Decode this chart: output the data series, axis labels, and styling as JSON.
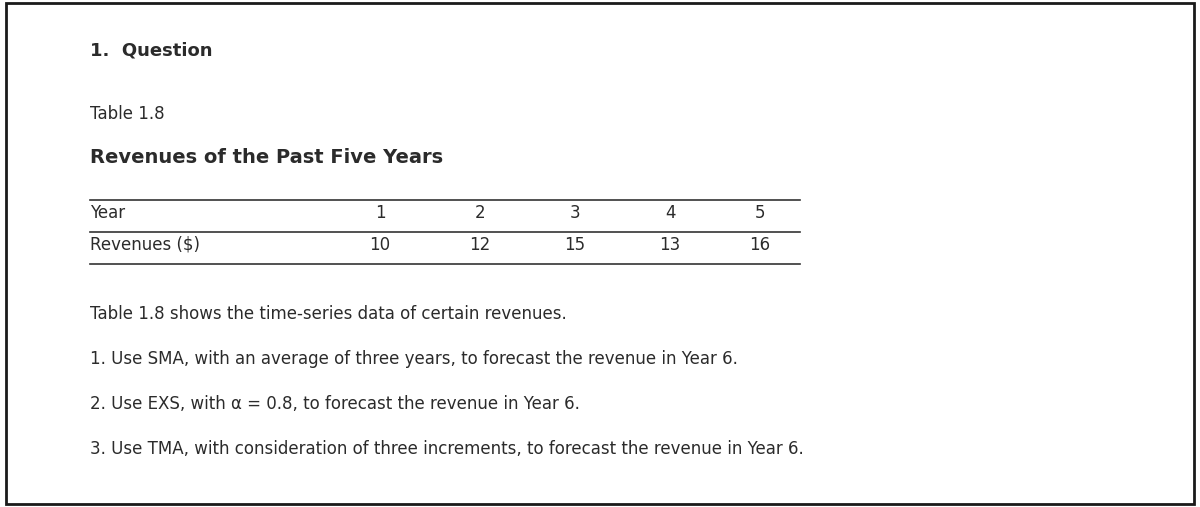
{
  "background_color": "#ffffff",
  "border_color": "#2b2b2b",
  "heading_number": "1.",
  "table_label": "Table 1.8",
  "table_title": "Revenues of the Past Five Years",
  "col_header": "Year",
  "row_header": "Revenues ($)",
  "years": [
    "1",
    "2",
    "3",
    "4",
    "5"
  ],
  "revenues": [
    "10",
    "12",
    "15",
    "13",
    "16"
  ],
  "description": "Table 1.8 shows the time-series data of certain revenues.",
  "q1": "1. Use SMA, with an average of three years, to forecast the revenue in Year 6.",
  "q2": "2. Use EXS, with α = 0.8, to forecast the revenue in Year 6.",
  "q3": "3. Use TMA, with consideration of three increments, to forecast the revenue in Year 6.",
  "font_size_heading": 13,
  "font_size_table_label": 12,
  "font_size_title": 14,
  "font_size_table": 12,
  "font_size_body": 12,
  "text_color": "#2b2b2b"
}
